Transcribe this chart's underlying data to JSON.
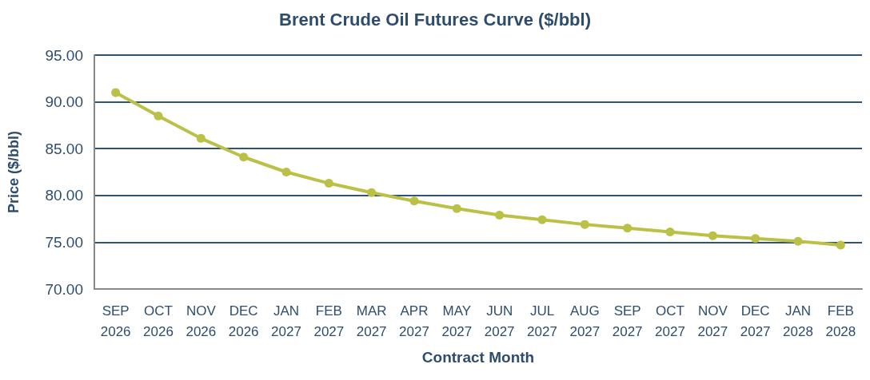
{
  "chart_data": {
    "type": "line",
    "title": "Brent Crude Oil Futures Curve ($/bbl)",
    "xlabel": "Contract Month",
    "ylabel": "Price ($/bbl)",
    "categories": [
      "SEP\n2026",
      "OCT\n2026",
      "NOV\n2026",
      "DEC\n2026",
      "JAN\n2027",
      "FEB\n2027",
      "MAR\n2027",
      "APR\n2027",
      "MAY\n2027",
      "JUN\n2027",
      "JUL\n2027",
      "AUG\n2027",
      "SEP\n2027",
      "OCT\n2027",
      "NOV\n2027",
      "DEC\n2027",
      "JAN\n2028",
      "FEB\n2028"
    ],
    "series": [
      {
        "color": "#bbc046",
        "values": [
          91.0,
          88.5,
          86.1,
          84.1,
          82.5,
          81.3,
          80.3,
          79.4,
          78.6,
          77.9,
          77.4,
          76.9,
          76.5,
          76.1,
          75.7,
          75.4,
          75.1,
          74.7
        ]
      }
    ],
    "ylim": [
      70,
      95
    ],
    "yticks": [
      {
        "value": 70,
        "label": "70.00"
      },
      {
        "value": 75,
        "label": "75.00"
      },
      {
        "value": 80,
        "label": "80.00"
      },
      {
        "value": 85,
        "label": "85.00"
      },
      {
        "value": 90,
        "label": "90.00"
      },
      {
        "value": 95,
        "label": "95.00"
      }
    ],
    "grid": "y",
    "marker": "circle",
    "line_style": "solid"
  }
}
